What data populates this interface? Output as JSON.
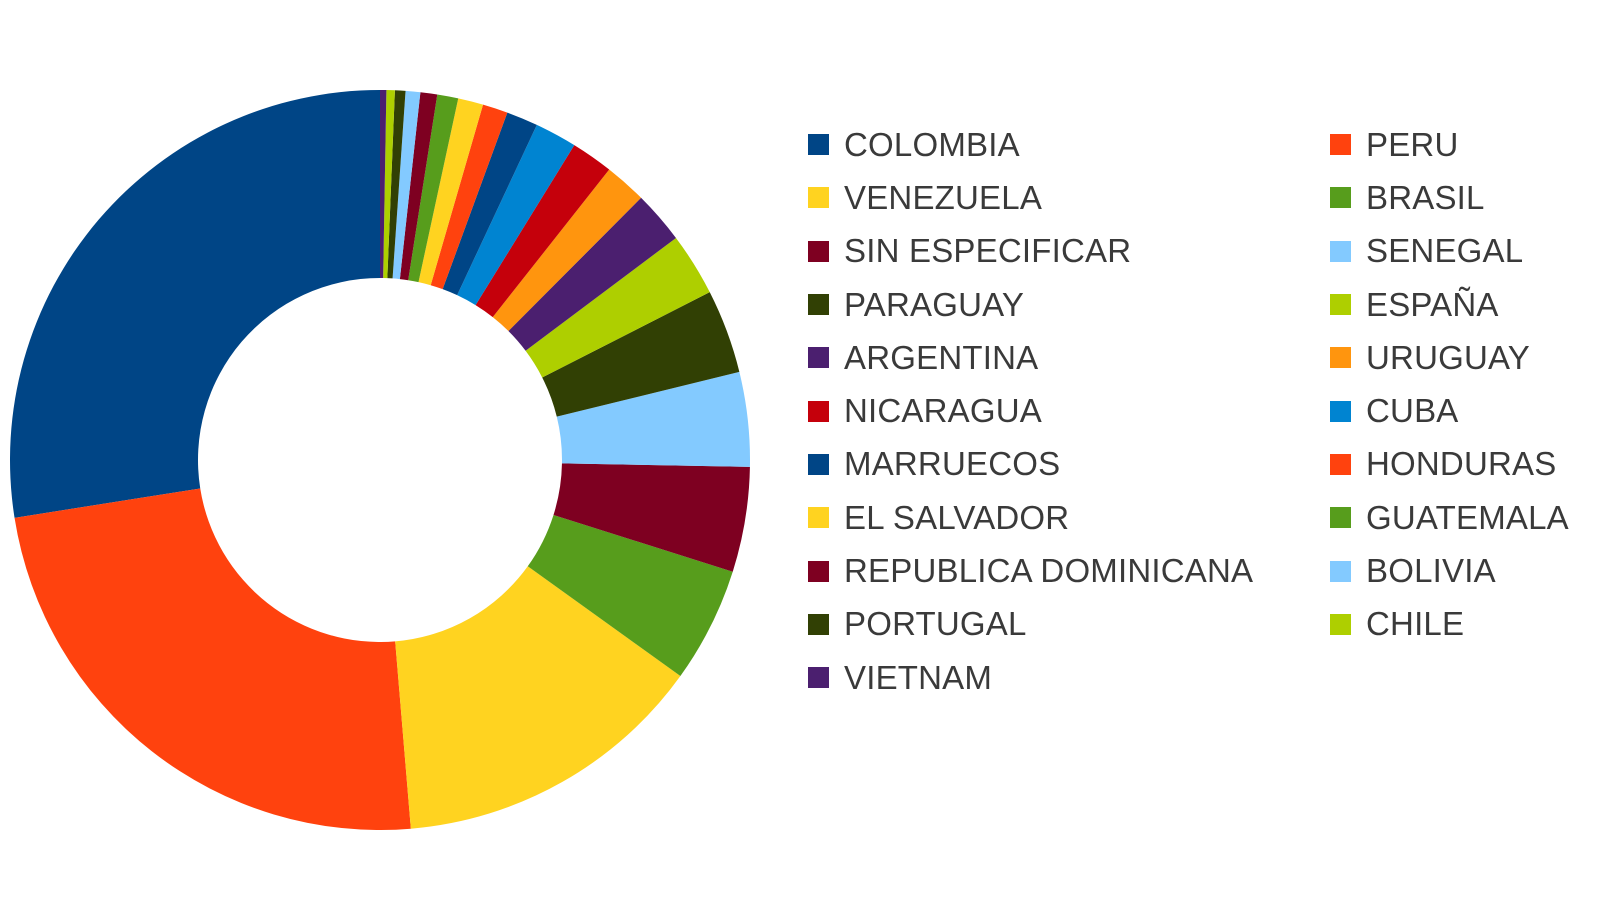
{
  "chart_data": {
    "type": "pie",
    "donut": true,
    "legend_position": "right",
    "series": [
      {
        "name": "COLOMBIA",
        "value": 30.0,
        "color": "#004586"
      },
      {
        "name": "PERU",
        "value": 26.0,
        "color": "#ff420e"
      },
      {
        "name": "VENEZUELA",
        "value": 15.0,
        "color": "#ffd320"
      },
      {
        "name": "BRASIL",
        "value": 5.5,
        "color": "#579d1c"
      },
      {
        "name": "SIN ESPECIFICAR",
        "value": 5.0,
        "color": "#7e0021"
      },
      {
        "name": "SENEGAL",
        "value": 4.5,
        "color": "#83caff"
      },
      {
        "name": "PARAGUAY",
        "value": 4.0,
        "color": "#314004"
      },
      {
        "name": "ESPAÑA",
        "value": 3.0,
        "color": "#aecf00"
      },
      {
        "name": "ARGENTINA",
        "value": 2.5,
        "color": "#4b1f6f"
      },
      {
        "name": "URUGUAY",
        "value": 2.0,
        "color": "#ff950e"
      },
      {
        "name": "NICARAGUA",
        "value": 2.0,
        "color": "#c5000b"
      },
      {
        "name": "CUBA",
        "value": 2.0,
        "color": "#0084d1"
      },
      {
        "name": "MARRUECOS",
        "value": 1.5,
        "color": "#004586"
      },
      {
        "name": "HONDURAS",
        "value": 1.2,
        "color": "#ff420e"
      },
      {
        "name": "EL SALVADOR",
        "value": 1.2,
        "color": "#ffd320"
      },
      {
        "name": "GUATEMALA",
        "value": 1.0,
        "color": "#579d1c"
      },
      {
        "name": "REPUBLICA DOMINICANA",
        "value": 0.8,
        "color": "#7e0021"
      },
      {
        "name": "BOLIVIA",
        "value": 0.7,
        "color": "#83caff"
      },
      {
        "name": "PORTUGAL",
        "value": 0.5,
        "color": "#314004"
      },
      {
        "name": "CHILE",
        "value": 0.4,
        "color": "#aecf00"
      },
      {
        "name": "VIETNAM",
        "value": 0.3,
        "color": "#4b1f6f"
      }
    ]
  }
}
